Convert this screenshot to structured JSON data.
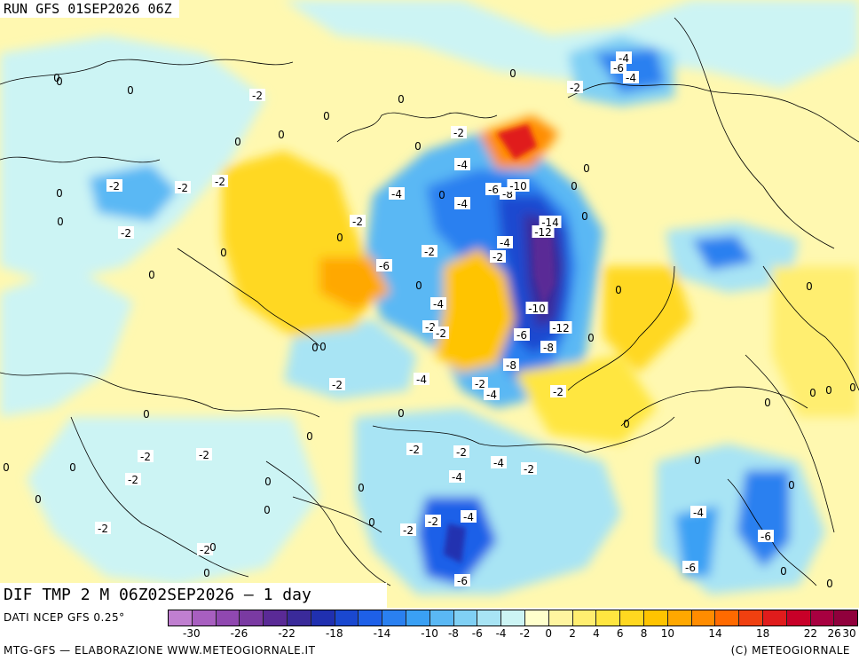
{
  "run_title": "RUN GFS 01SEP2026 06Z",
  "map_title": "DIF TMP 2 M 06Z02SEP2026 — 1 day",
  "source": "DATI NCEP GFS 0.25°",
  "producer": "MTG-GFS — ELABORAZIONE WWW.METEOGIORNALE.IT",
  "copyright": "(C) METEOGIORNALE",
  "colorbar": {
    "colors": [
      "#c07fd0",
      "#a85fc0",
      "#9048b0",
      "#7a3aa2",
      "#5a2a96",
      "#3a2a9a",
      "#2030b0",
      "#1a48d0",
      "#1e60e8",
      "#2a80f0",
      "#3aa0f4",
      "#5ab8f4",
      "#80d0f4",
      "#a8e4f4",
      "#ccf4f4",
      "#ffffcc",
      "#fff5a0",
      "#ffee70",
      "#ffe640",
      "#ffd820",
      "#ffc400",
      "#ffa800",
      "#ff8c00",
      "#ff6a00",
      "#f04010",
      "#e01c1c",
      "#c80028",
      "#a80040",
      "#90003c"
    ],
    "ticks": [
      "-30",
      "-26",
      "-22",
      "-18",
      "-14",
      "-10",
      "-8",
      "-6",
      "-4",
      "-2",
      "0",
      "2",
      "4",
      "6",
      "8",
      "10",
      "14",
      "18",
      "22",
      "26",
      "30"
    ]
  },
  "map_labels": [
    "0",
    "0",
    "0",
    "0",
    "0",
    "0",
    "0",
    "0",
    "0",
    "0",
    "0",
    "0",
    "0",
    "0",
    "0",
    "0",
    "0",
    "0",
    "0",
    "0",
    "-2",
    "-2",
    "-2",
    "-2",
    "-2",
    "-2",
    "-2",
    "-2",
    "-2",
    "-2",
    "-2",
    "-2",
    "-2",
    "-2",
    "-2",
    "-2",
    "-2",
    "-2",
    "-2",
    "-2",
    "-2",
    "-2",
    "-2",
    "-2",
    "-4",
    "-4",
    "-4",
    "-4",
    "-4",
    "-4",
    "-4",
    "-4",
    "-4",
    "-4",
    "-4",
    "-6",
    "-6",
    "-6",
    "-6",
    "-6",
    "-6",
    "-8",
    "-8",
    "-8",
    "-10",
    "-10",
    "-12",
    "-12",
    "-14",
    "-4",
    "-6",
    "-4",
    "-2",
    "0",
    "0",
    "0",
    "0",
    "0",
    "0",
    "0",
    "0",
    "0",
    "0",
    "0",
    "0",
    "0",
    "0",
    "0",
    "0",
    "0",
    "0",
    "0",
    "0",
    "0",
    "0",
    "0",
    "0",
    "0",
    "0",
    "0",
    "0",
    "0",
    "0",
    "0"
  ]
}
